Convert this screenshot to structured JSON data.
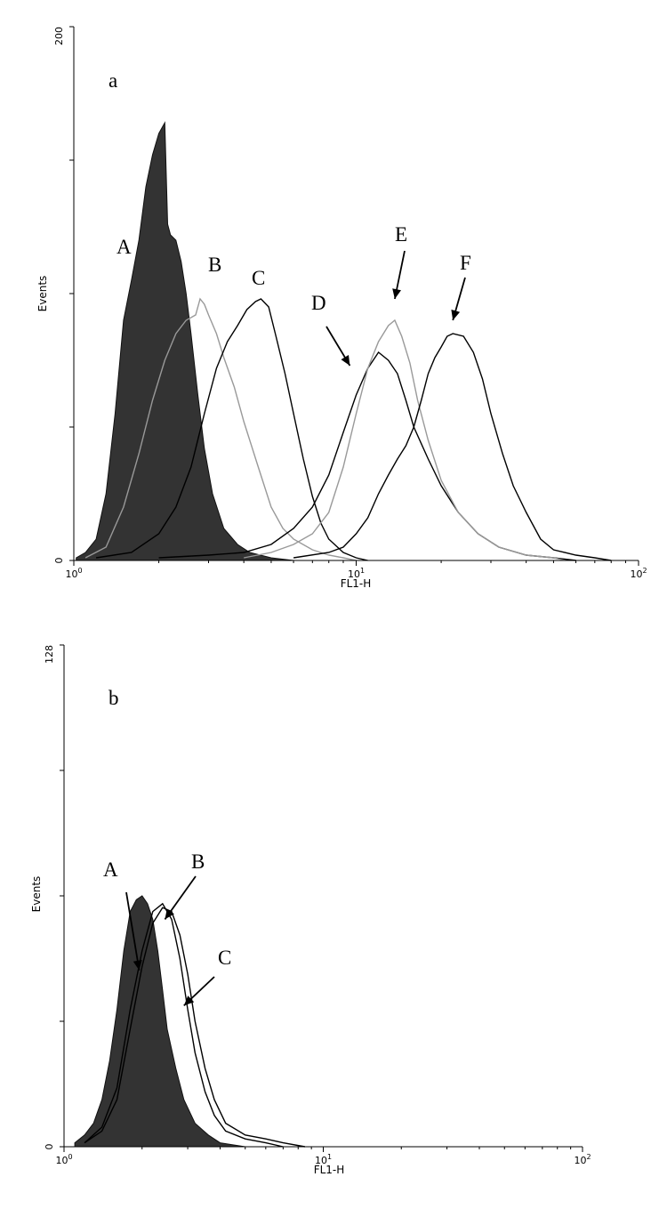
{
  "chart_data": [
    {
      "type": "histogram",
      "panel_label": "a",
      "xlabel": "FL1-H",
      "ylabel": "Events",
      "x_scale": "log",
      "xlim": [
        1,
        100
      ],
      "ylim": [
        0,
        200
      ],
      "x_ticks": [
        {
          "value": 1,
          "base": "10",
          "exp": "0"
        },
        {
          "value": 10,
          "base": "10",
          "exp": "1"
        },
        {
          "value": 100,
          "base": "10",
          "exp": "2"
        }
      ],
      "y_ticks": [
        {
          "value": 0,
          "label": "0"
        },
        {
          "value": 200,
          "label": "200"
        }
      ],
      "grid": false,
      "series": [
        {
          "label": "A",
          "filled": true,
          "color": "#333333",
          "points": [
            [
              1.02,
              1
            ],
            [
              1.1,
              3
            ],
            [
              1.2,
              8
            ],
            [
              1.3,
              25
            ],
            [
              1.4,
              55
            ],
            [
              1.5,
              90
            ],
            [
              1.6,
              105
            ],
            [
              1.7,
              120
            ],
            [
              1.8,
              140
            ],
            [
              1.9,
              152
            ],
            [
              2.0,
              160
            ],
            [
              2.1,
              164
            ],
            [
              2.15,
              126
            ],
            [
              2.2,
              122
            ],
            [
              2.3,
              120
            ],
            [
              2.4,
              112
            ],
            [
              2.5,
              100
            ],
            [
              2.6,
              85
            ],
            [
              2.75,
              62
            ],
            [
              2.9,
              42
            ],
            [
              3.1,
              25
            ],
            [
              3.4,
              12
            ],
            [
              3.8,
              6
            ],
            [
              4.2,
              3
            ],
            [
              5.0,
              1
            ],
            [
              6.0,
              0
            ]
          ]
        },
        {
          "label": "B",
          "filled": false,
          "color": "#999999",
          "points": [
            [
              1.1,
              1
            ],
            [
              1.3,
              5
            ],
            [
              1.5,
              20
            ],
            [
              1.7,
              40
            ],
            [
              1.9,
              60
            ],
            [
              2.1,
              75
            ],
            [
              2.3,
              85
            ],
            [
              2.5,
              90
            ],
            [
              2.7,
              92
            ],
            [
              2.8,
              98
            ],
            [
              2.9,
              96
            ],
            [
              3.0,
              92
            ],
            [
              3.2,
              85
            ],
            [
              3.4,
              76
            ],
            [
              3.7,
              65
            ],
            [
              4.0,
              52
            ],
            [
              4.5,
              35
            ],
            [
              5.0,
              20
            ],
            [
              5.5,
              12
            ],
            [
              6.0,
              8
            ],
            [
              7.0,
              4
            ],
            [
              8.0,
              2
            ],
            [
              9.0,
              1
            ],
            [
              10.0,
              0
            ]
          ]
        },
        {
          "label": "C",
          "filled": false,
          "color": "#000000",
          "points": [
            [
              1.2,
              1
            ],
            [
              1.6,
              3
            ],
            [
              2.0,
              10
            ],
            [
              2.3,
              20
            ],
            [
              2.6,
              35
            ],
            [
              2.9,
              55
            ],
            [
              3.2,
              72
            ],
            [
              3.5,
              82
            ],
            [
              3.8,
              88
            ],
            [
              4.1,
              94
            ],
            [
              4.4,
              97
            ],
            [
              4.6,
              98
            ],
            [
              4.9,
              95
            ],
            [
              5.2,
              84
            ],
            [
              5.6,
              70
            ],
            [
              6.0,
              55
            ],
            [
              6.5,
              38
            ],
            [
              7.0,
              24
            ],
            [
              7.5,
              14
            ],
            [
              8.0,
              8
            ],
            [
              9.0,
              3
            ],
            [
              10.0,
              1
            ],
            [
              11.0,
              0
            ]
          ]
        },
        {
          "label": "D",
          "filled": false,
          "color": "#000000",
          "points": [
            [
              2.0,
              1
            ],
            [
              3.0,
              2
            ],
            [
              4.0,
              3
            ],
            [
              5.0,
              6
            ],
            [
              6.0,
              12
            ],
            [
              7.0,
              20
            ],
            [
              8.0,
              32
            ],
            [
              9.0,
              48
            ],
            [
              10.0,
              62
            ],
            [
              11.0,
              72
            ],
            [
              12.0,
              78
            ],
            [
              13.0,
              75
            ],
            [
              14.0,
              70
            ],
            [
              15.0,
              60
            ],
            [
              16.0,
              50
            ],
            [
              18.0,
              38
            ],
            [
              20.0,
              28
            ],
            [
              23.0,
              18
            ],
            [
              27.0,
              10
            ],
            [
              32.0,
              5
            ],
            [
              40.0,
              2
            ],
            [
              50.0,
              1
            ],
            [
              60.0,
              0
            ]
          ]
        },
        {
          "label": "E",
          "filled": false,
          "color": "#999999",
          "points": [
            [
              4.0,
              1
            ],
            [
              5.0,
              3
            ],
            [
              6.0,
              6
            ],
            [
              7.0,
              10
            ],
            [
              8.0,
              18
            ],
            [
              9.0,
              35
            ],
            [
              10.0,
              55
            ],
            [
              11.0,
              72
            ],
            [
              12.0,
              82
            ],
            [
              13.0,
              88
            ],
            [
              13.7,
              90
            ],
            [
              14.5,
              84
            ],
            [
              15.5,
              74
            ],
            [
              16.5,
              60
            ],
            [
              18.0,
              45
            ],
            [
              20.0,
              30
            ],
            [
              23.0,
              18
            ],
            [
              27.0,
              10
            ],
            [
              32.0,
              5
            ],
            [
              40.0,
              2
            ],
            [
              50.0,
              1
            ],
            [
              55.0,
              0
            ]
          ]
        },
        {
          "label": "F",
          "filled": false,
          "color": "#000000",
          "points": [
            [
              6.0,
              1
            ],
            [
              8.0,
              3
            ],
            [
              9.0,
              5
            ],
            [
              10.0,
              10
            ],
            [
              11.0,
              16
            ],
            [
              12.0,
              25
            ],
            [
              13.0,
              32
            ],
            [
              14.0,
              38
            ],
            [
              15.0,
              43
            ],
            [
              16.0,
              50
            ],
            [
              17.0,
              60
            ],
            [
              18.0,
              70
            ],
            [
              19.0,
              76
            ],
            [
              20.0,
              80
            ],
            [
              21.0,
              84
            ],
            [
              22.0,
              85
            ],
            [
              24.0,
              84
            ],
            [
              26.0,
              78
            ],
            [
              28.0,
              68
            ],
            [
              30.0,
              55
            ],
            [
              33.0,
              40
            ],
            [
              36.0,
              28
            ],
            [
              40.0,
              18
            ],
            [
              45.0,
              8
            ],
            [
              50.0,
              4
            ],
            [
              60.0,
              2
            ],
            [
              70.0,
              1
            ],
            [
              80.0,
              0
            ]
          ]
        }
      ],
      "annotations": [
        {
          "text": "A",
          "target_x": null,
          "target_y": null
        },
        {
          "text": "B",
          "target_x": null,
          "target_y": null
        },
        {
          "text": "C",
          "target_x": null,
          "target_y": null
        },
        {
          "text": "D",
          "target_x": 9.5,
          "target_y": 73
        },
        {
          "text": "E",
          "target_x": 13.7,
          "target_y": 98
        },
        {
          "text": "F",
          "target_x": 22.0,
          "target_y": 90
        }
      ]
    },
    {
      "type": "histogram",
      "panel_label": "b",
      "xlabel": "FL1-H",
      "ylabel": "Events",
      "x_scale": "log",
      "xlim": [
        1,
        100
      ],
      "ylim": [
        0,
        128
      ],
      "x_ticks": [
        {
          "value": 1,
          "base": "10",
          "exp": "0"
        },
        {
          "value": 10,
          "base": "10",
          "exp": "1"
        },
        {
          "value": 100,
          "base": "10",
          "exp": "2"
        }
      ],
      "y_ticks": [
        {
          "value": 0,
          "label": "0"
        },
        {
          "value": 128,
          "label": "128"
        }
      ],
      "grid": false,
      "series": [
        {
          "label": "A",
          "filled": true,
          "color": "#333333",
          "points": [
            [
              1.1,
              1
            ],
            [
              1.2,
              3
            ],
            [
              1.3,
              6
            ],
            [
              1.4,
              12
            ],
            [
              1.5,
              22
            ],
            [
              1.6,
              35
            ],
            [
              1.7,
              50
            ],
            [
              1.8,
              60
            ],
            [
              1.9,
              63
            ],
            [
              2.0,
              64
            ],
            [
              2.1,
              62
            ],
            [
              2.2,
              58
            ],
            [
              2.3,
              50
            ],
            [
              2.4,
              40
            ],
            [
              2.5,
              30
            ],
            [
              2.7,
              20
            ],
            [
              2.9,
              12
            ],
            [
              3.2,
              6
            ],
            [
              3.6,
              3
            ],
            [
              4.0,
              1
            ],
            [
              5.0,
              0
            ]
          ]
        },
        {
          "label": "B",
          "filled": false,
          "color": "#000000",
          "points": [
            [
              1.2,
              1
            ],
            [
              1.4,
              5
            ],
            [
              1.6,
              15
            ],
            [
              1.8,
              35
            ],
            [
              2.0,
              50
            ],
            [
              2.2,
              60
            ],
            [
              2.4,
              62
            ],
            [
              2.6,
              58
            ],
            [
              2.8,
              48
            ],
            [
              3.0,
              35
            ],
            [
              3.2,
              24
            ],
            [
              3.5,
              14
            ],
            [
              3.8,
              8
            ],
            [
              4.2,
              4
            ],
            [
              5.0,
              2
            ],
            [
              6.0,
              1
            ],
            [
              7.0,
              0
            ]
          ]
        },
        {
          "label": "C",
          "filled": false,
          "color": "#000000",
          "points": [
            [
              1.2,
              1
            ],
            [
              1.4,
              4
            ],
            [
              1.6,
              12
            ],
            [
              1.8,
              30
            ],
            [
              2.0,
              46
            ],
            [
              2.2,
              57
            ],
            [
              2.4,
              61
            ],
            [
              2.6,
              60
            ],
            [
              2.8,
              54
            ],
            [
              3.0,
              44
            ],
            [
              3.2,
              32
            ],
            [
              3.5,
              20
            ],
            [
              3.8,
              12
            ],
            [
              4.2,
              6
            ],
            [
              5.0,
              3
            ],
            [
              6.0,
              2
            ],
            [
              7.0,
              1
            ],
            [
              8.5,
              0
            ]
          ]
        }
      ],
      "annotations": [
        {
          "text": "A",
          "target_x": 1.95,
          "target_y": 45
        },
        {
          "text": "B",
          "target_x": 2.45,
          "target_y": 58
        },
        {
          "text": "C",
          "target_x": 2.9,
          "target_y": 36
        }
      ]
    }
  ]
}
